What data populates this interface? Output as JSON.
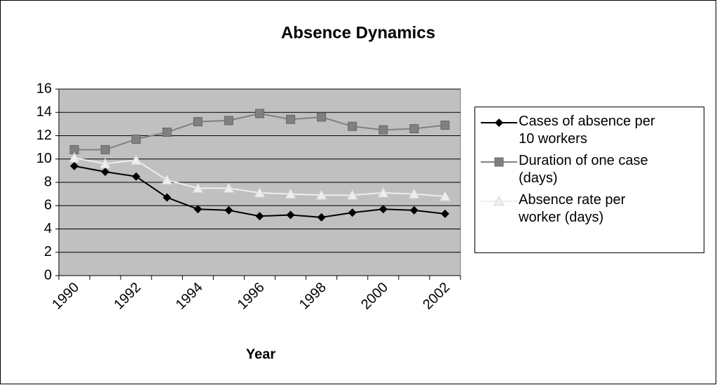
{
  "chart_data": {
    "type": "line",
    "title": "Absence Dynamics",
    "x_label": "Year",
    "categories": [
      "1990",
      null,
      "1992",
      null,
      "1994",
      null,
      "1996",
      null,
      "1998",
      null,
      "2000",
      null,
      "2002"
    ],
    "series": [
      {
        "name": "Cases of absence per 10 workers",
        "color": "#000000",
        "marker": "diamond",
        "values": [
          9.4,
          8.9,
          8.5,
          6.7,
          5.7,
          5.6,
          5.1,
          5.2,
          5.0,
          5.4,
          5.7,
          5.6,
          5.3
        ]
      },
      {
        "name": "Duration of one case (days)",
        "color": "#808080",
        "marker": "square",
        "values": [
          10.8,
          10.8,
          11.7,
          12.3,
          13.2,
          13.3,
          13.9,
          13.4,
          13.6,
          12.8,
          12.5,
          12.6,
          12.9
        ]
      },
      {
        "name": "Absence rate per worker (days)",
        "color": "#eeeeee",
        "marker": "triangle",
        "values": [
          10.1,
          9.6,
          9.9,
          8.2,
          7.5,
          7.5,
          7.1,
          7.0,
          6.9,
          6.9,
          7.1,
          7.0,
          6.8
        ]
      }
    ],
    "ylim": [
      0,
      16
    ],
    "yticks": [
      0,
      2,
      4,
      6,
      8,
      10,
      12,
      14,
      16
    ],
    "grid": true,
    "legend": "right"
  }
}
